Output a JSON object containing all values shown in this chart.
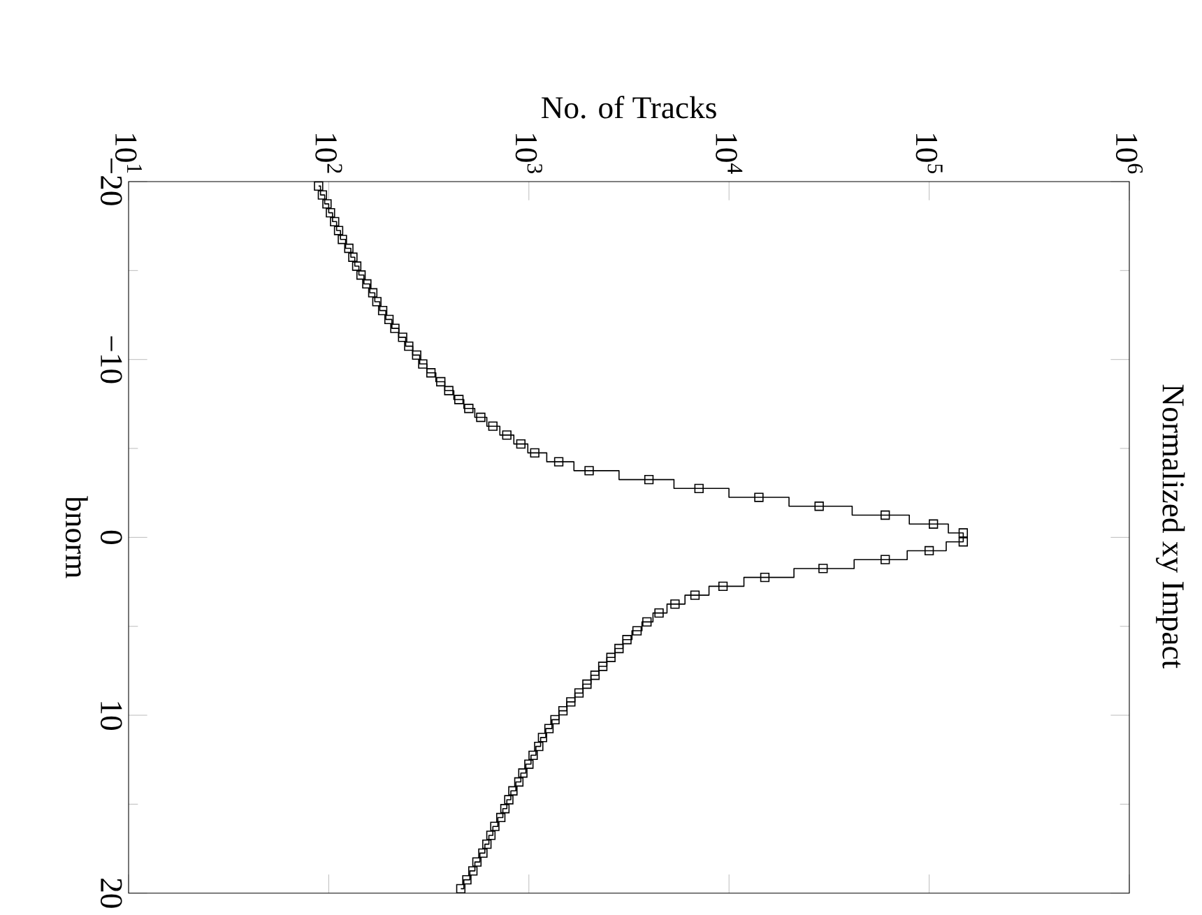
{
  "chart_data": {
    "type": "step",
    "title": "Normalized xy Impact",
    "xlabel": "No. of Tracks",
    "ylabel": "bnorm",
    "log": "x",
    "xlim": [
      10,
      1000000
    ],
    "ylim": [
      20,
      -20
    ],
    "xticks": [
      {
        "value": 10,
        "label": "10$^{1}$"
      },
      {
        "value": 100,
        "label": "10$^{2}$"
      },
      {
        "value": 1000,
        "label": "10$^{3}$"
      },
      {
        "value": 10000,
        "label": "10$^{4}$"
      },
      {
        "value": 100000,
        "label": "10$^{5}$"
      },
      {
        "value": 1000000,
        "label": "10$^{6}$"
      }
    ],
    "yticks": [
      {
        "value": -20,
        "label": "−20"
      },
      {
        "value": -10,
        "label": "−10"
      },
      0,
      10,
      20
    ],
    "x": [
      89,
      93,
      98,
      102,
      107,
      112,
      117,
      126,
      132,
      138,
      145,
      155,
      166,
      174,
      186,
      200,
      214,
      234,
      251,
      275,
      295,
      324,
      363,
      398,
      447,
      501,
      575,
      661,
      776,
      912,
      1070,
      1410,
      2000,
      3980,
      7080,
      14100,
      28200,
      60300,
      105000,
      148000,
      148000,
      100000,
      60300,
      29500,
      15100,
      9330,
      6760,
      5370,
      4470,
      3890,
      3470,
      3090,
      2820,
      2570,
      2340,
      2140,
      1950,
      1780,
      1620,
      1480,
      1350,
      1260,
      1170,
      1120,
      1050,
      1000,
      933,
      891,
      832,
      794,
      759,
      724,
      676,
      646,
      617,
      589,
      550,
      525,
      490,
      457
    ],
    "series": [
      {
        "color": "#000000",
        "values": [
          -19.75,
          -19.25,
          -18.75,
          -18.25,
          -17.75,
          -17.25,
          -16.75,
          -16.25,
          -15.75,
          -15.25,
          -14.75,
          -14.25,
          -13.75,
          -13.25,
          -12.75,
          -12.25,
          -11.75,
          -11.25,
          -10.75,
          -10.25,
          -9.75,
          -9.25,
          -8.75,
          -8.25,
          -7.75,
          -7.25,
          -6.75,
          -6.25,
          -5.75,
          -5.25,
          -4.75,
          -4.25,
          -3.75,
          -3.25,
          -2.75,
          -2.25,
          -1.75,
          -1.25,
          -0.75,
          -0.25,
          0.25,
          0.75,
          1.25,
          1.75,
          2.25,
          2.75,
          3.25,
          3.75,
          4.25,
          4.75,
          5.25,
          5.75,
          6.25,
          6.75,
          7.25,
          7.75,
          8.25,
          8.75,
          9.25,
          9.75,
          10.25,
          10.75,
          11.25,
          11.75,
          12.25,
          12.75,
          13.25,
          13.75,
          14.25,
          14.75,
          15.25,
          15.75,
          16.25,
          16.75,
          17.25,
          17.75,
          18.25,
          18.75,
          19.25,
          19.75
        ]
      },
      {
        "type": "scatter",
        "marker": "square",
        "color": "#000000",
        "values": [
          -19.75,
          -19.25,
          -18.75,
          -18.25,
          -17.75,
          -17.25,
          -16.75,
          -16.25,
          -15.75,
          -15.25,
          -14.75,
          -14.25,
          -13.75,
          -13.25,
          -12.75,
          -12.25,
          -11.75,
          -11.25,
          -10.75,
          -10.25,
          -9.75,
          -9.25,
          -8.75,
          -8.25,
          -7.75,
          -7.25,
          -6.75,
          -6.25,
          -5.75,
          -5.25,
          -4.75,
          -4.25,
          -3.75,
          -3.25,
          -2.75,
          -2.25,
          -1.75,
          -1.25,
          -0.75,
          -0.25,
          0.25,
          0.75,
          1.25,
          1.75,
          2.25,
          2.75,
          3.25,
          3.75,
          4.25,
          4.75,
          5.25,
          5.75,
          6.25,
          6.75,
          7.25,
          7.75,
          8.25,
          8.75,
          9.25,
          9.75,
          10.25,
          10.75,
          11.25,
          11.75,
          12.25,
          12.75,
          13.25,
          13.75,
          14.25,
          14.75,
          15.25,
          15.75,
          16.25,
          16.75,
          17.25,
          17.75,
          18.25,
          18.75,
          19.25,
          19.75
        ]
      }
    ]
  }
}
